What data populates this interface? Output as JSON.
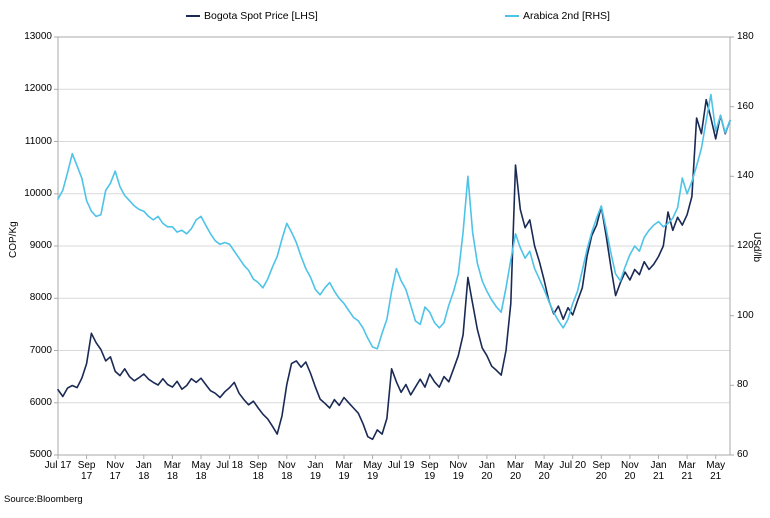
{
  "source_note": "Source:Bloomberg",
  "legend": [
    {
      "label": "Bogota Spot Price [LHS]",
      "color": "#1b2a55"
    },
    {
      "label": "Arabica 2nd [RHS]",
      "color": "#4ec3e8"
    }
  ],
  "chart_data": {
    "type": "line",
    "title": "",
    "grid": "horizontal",
    "legend_position": "top",
    "left_axis": {
      "label": "COP/Kg",
      "min": 5000,
      "max": 13000,
      "step": 1000,
      "ticks": [
        13000,
        12000,
        11000,
        10000,
        9000,
        8000,
        7000,
        6000,
        5000
      ]
    },
    "right_axis": {
      "label": "USd/lb",
      "min": 60,
      "max": 180,
      "step": 20,
      "ticks": [
        180,
        160,
        140,
        120,
        100,
        80,
        60
      ]
    },
    "x_tick_labels": [
      [
        "Jul 17"
      ],
      [
        "Sep",
        "17"
      ],
      [
        "Nov",
        "17"
      ],
      [
        "Jan",
        "18"
      ],
      [
        "Mar",
        "18"
      ],
      [
        "May",
        "18"
      ],
      [
        "Jul 18"
      ],
      [
        "Sep",
        "18"
      ],
      [
        "Nov",
        "18"
      ],
      [
        "Jan",
        "19"
      ],
      [
        "Mar",
        "19"
      ],
      [
        "May",
        "19"
      ],
      [
        "Jul 19"
      ],
      [
        "Sep",
        "19"
      ],
      [
        "Nov",
        "19"
      ],
      [
        "Jan",
        "20"
      ],
      [
        "Mar",
        "20"
      ],
      [
        "May",
        "20"
      ],
      [
        "Jul 20"
      ],
      [
        "Sep",
        "20"
      ],
      [
        "Nov",
        "20"
      ],
      [
        "Jan",
        "21"
      ],
      [
        "Mar",
        "21"
      ],
      [
        "May",
        "21"
      ]
    ],
    "x_range_note": "approx. 10-day sampling, Jul 2017 to Jun 2021",
    "series": [
      {
        "name": "Bogota Spot Price [LHS]",
        "axis": "left",
        "color": "#1b2a55",
        "values": [
          6250,
          6120,
          6280,
          6330,
          6290,
          6470,
          6750,
          7330,
          7150,
          7020,
          6800,
          6880,
          6600,
          6520,
          6650,
          6500,
          6420,
          6480,
          6550,
          6450,
          6390,
          6340,
          6460,
          6350,
          6300,
          6410,
          6260,
          6330,
          6460,
          6390,
          6470,
          6350,
          6230,
          6180,
          6100,
          6210,
          6290,
          6390,
          6180,
          6060,
          5960,
          6030,
          5900,
          5780,
          5690,
          5550,
          5400,
          5750,
          6350,
          6750,
          6800,
          6680,
          6780,
          6560,
          6300,
          6070,
          5990,
          5900,
          6060,
          5950,
          6100,
          6000,
          5900,
          5800,
          5600,
          5350,
          5300,
          5480,
          5400,
          5700,
          6650,
          6400,
          6200,
          6350,
          6150,
          6300,
          6450,
          6300,
          6550,
          6400,
          6300,
          6500,
          6400,
          6650,
          6900,
          7300,
          8400,
          7900,
          7400,
          7050,
          6900,
          6700,
          6620,
          6530,
          7000,
          7900,
          10550,
          9700,
          9350,
          9500,
          9000,
          8700,
          8350,
          7950,
          7700,
          7850,
          7600,
          7820,
          7680,
          7950,
          8200,
          8800,
          9200,
          9400,
          9750,
          9200,
          8600,
          8050,
          8300,
          8500,
          8350,
          8550,
          8450,
          8700,
          8550,
          8650,
          8800,
          9000,
          9650,
          9300,
          9550,
          9400,
          9600,
          9950,
          11450,
          11150,
          11800,
          11450,
          11050,
          11500,
          11150,
          11400
        ]
      },
      {
        "name": "Arabica 2nd [RHS]",
        "axis": "right",
        "color": "#4ec3e8",
        "values": [
          133.5,
          136,
          141,
          146.5,
          143,
          139.5,
          133,
          130,
          128.5,
          129,
          136,
          138,
          141.5,
          137,
          134.5,
          133,
          131.5,
          130.5,
          130,
          128.5,
          127.5,
          128.5,
          126.5,
          125.5,
          125.5,
          124,
          124.5,
          123.5,
          125,
          127.5,
          128.5,
          126,
          123.5,
          121.5,
          120.5,
          121,
          120.5,
          118.5,
          116.5,
          114.5,
          113,
          110.5,
          109.5,
          108,
          110.5,
          114,
          117,
          122,
          126.5,
          124,
          121,
          117,
          113.5,
          111,
          107.5,
          106,
          108,
          109.5,
          107,
          105,
          103.5,
          101.5,
          99.5,
          98.5,
          96.5,
          93.5,
          91,
          90.5,
          95,
          99,
          107,
          113.5,
          110,
          107.5,
          103,
          98.5,
          97.5,
          102.5,
          101,
          98,
          96.5,
          98,
          103,
          107,
          112,
          124,
          140,
          124,
          115,
          110,
          107,
          104.5,
          102.5,
          101,
          108,
          116,
          123.5,
          119.5,
          116.5,
          118.5,
          113.5,
          110.5,
          107.5,
          104,
          101,
          98.5,
          96.5,
          99,
          103.5,
          107,
          113,
          119,
          124,
          128,
          131.5,
          125,
          118,
          112,
          110,
          114,
          117.5,
          120,
          118.5,
          122.5,
          124.5,
          126,
          127,
          125.5,
          126.5,
          128,
          131,
          139.5,
          135,
          138.5,
          143,
          148,
          156,
          163.5,
          153,
          157.5,
          152.5,
          156
        ]
      }
    ]
  }
}
